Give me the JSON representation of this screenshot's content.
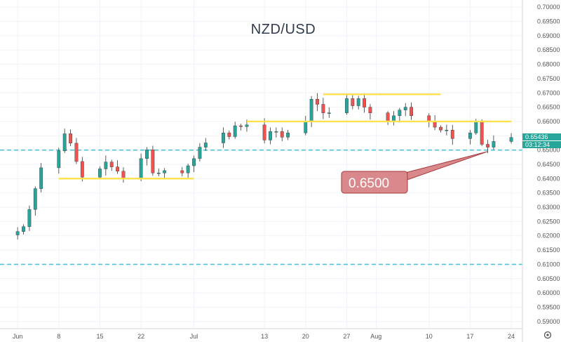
{
  "chart_data": {
    "type": "candlestick",
    "title": "NZD/USD",
    "xlabel": "",
    "ylabel": "",
    "ylim": [
      0.5875,
      0.7025
    ],
    "y_ticks": [
      "0.70000",
      "0.69500",
      "0.69000",
      "0.68500",
      "0.68000",
      "0.67500",
      "0.67000",
      "0.66500",
      "0.66000",
      "0.65500",
      "0.65000",
      "0.64500",
      "0.64000",
      "0.63500",
      "0.63000",
      "0.62500",
      "0.62000",
      "0.61500",
      "0.61000",
      "0.60500",
      "0.60000",
      "0.59500",
      "0.59000"
    ],
    "x_ticks": [
      "Jun",
      "8",
      "15",
      "22",
      "Jul",
      "13",
      "20",
      "27",
      "Aug",
      "10",
      "17",
      "24"
    ],
    "grid": true,
    "current_price": "0.65436",
    "countdown": "03:12:34",
    "current_price_color": "#26a69a",
    "countdown_color": "#26a69a",
    "candle_up_color": "#26a69a",
    "candle_down_color": "#ef5350",
    "horizontal_levels": [
      {
        "value": 0.65,
        "style": "dashed",
        "color": "#4fc3d8"
      },
      {
        "value": 0.61,
        "style": "dashed",
        "color": "#4fc3d8"
      }
    ],
    "annotation_lines": [
      {
        "value": 0.64,
        "from": "Jun 8",
        "to": "Jul 1",
        "color": "#ffe14d"
      },
      {
        "value": 0.66,
        "from": "Jul 10",
        "to": "Aug 24",
        "color": "#ffe14d"
      },
      {
        "value": 0.6695,
        "from": "Jul 23",
        "to": "Aug 12",
        "color": "#ffe14d"
      }
    ],
    "callout": {
      "text": "0.6500",
      "color": "#d9898b"
    },
    "series": [
      {
        "date": "Jun 1",
        "close": 0.6215
      },
      {
        "date": "Jun 2",
        "close": 0.6232
      },
      {
        "date": "Jun 3",
        "close": 0.6292
      },
      {
        "date": "Jun 4",
        "close": 0.6365
      },
      {
        "date": "Jun 5",
        "close": 0.6438
      },
      {
        "date": "Jun 8",
        "close": 0.6497
      },
      {
        "date": "Jun 9",
        "close": 0.6557
      },
      {
        "date": "Jun 10",
        "close": 0.6524
      },
      {
        "date": "Jun 11",
        "close": 0.646
      },
      {
        "date": "Jun 12",
        "close": 0.6405
      },
      {
        "date": "Jun 15",
        "close": 0.6434
      },
      {
        "date": "Jun 16",
        "close": 0.6458
      },
      {
        "date": "Jun 17",
        "close": 0.6441
      },
      {
        "date": "Jun 18",
        "close": 0.6426
      },
      {
        "date": "Jun 19",
        "close": 0.6402
      },
      {
        "date": "Jun 22",
        "close": 0.647
      },
      {
        "date": "Jun 23",
        "close": 0.6501
      },
      {
        "date": "Jun 24",
        "close": 0.642
      },
      {
        "date": "Jun 25",
        "close": 0.642
      },
      {
        "date": "Jun 26",
        "close": 0.6428
      },
      {
        "date": "Jun 29",
        "close": 0.642
      },
      {
        "date": "Jun 30",
        "close": 0.6445
      },
      {
        "date": "Jul 1",
        "close": 0.647
      },
      {
        "date": "Jul 2",
        "close": 0.651
      },
      {
        "date": "Jul 3",
        "close": 0.6525
      },
      {
        "date": "Jul 6",
        "close": 0.656
      },
      {
        "date": "Jul 7",
        "close": 0.6547
      },
      {
        "date": "Jul 8",
        "close": 0.6585
      },
      {
        "date": "Jul 9",
        "close": 0.6582
      },
      {
        "date": "Jul 10",
        "close": 0.6588
      },
      {
        "date": "Jul 13",
        "close": 0.6535
      },
      {
        "date": "Jul 14",
        "close": 0.6565
      },
      {
        "date": "Jul 15",
        "close": 0.6565
      },
      {
        "date": "Jul 16",
        "close": 0.6545
      },
      {
        "date": "Jul 17",
        "close": 0.656
      },
      {
        "date": "Jul 20",
        "close": 0.66
      },
      {
        "date": "Jul 21",
        "close": 0.6678
      },
      {
        "date": "Jul 22",
        "close": 0.666
      },
      {
        "date": "Jul 23",
        "close": 0.663
      },
      {
        "date": "Jul 24",
        "close": 0.663
      },
      {
        "date": "Jul 27",
        "close": 0.668
      },
      {
        "date": "Jul 28",
        "close": 0.6655
      },
      {
        "date": "Jul 29",
        "close": 0.668
      },
      {
        "date": "Jul 30",
        "close": 0.665
      },
      {
        "date": "Jul 31",
        "close": 0.663
      },
      {
        "date": "Aug 3",
        "close": 0.66
      },
      {
        "date": "Aug 4",
        "close": 0.662
      },
      {
        "date": "Aug 5",
        "close": 0.664
      },
      {
        "date": "Aug 6",
        "close": 0.665
      },
      {
        "date": "Aug 7",
        "close": 0.662
      },
      {
        "date": "Aug 10",
        "close": 0.66
      },
      {
        "date": "Aug 11",
        "close": 0.658
      },
      {
        "date": "Aug 12",
        "close": 0.657
      },
      {
        "date": "Aug 13",
        "close": 0.657
      },
      {
        "date": "Aug 14",
        "close": 0.654
      },
      {
        "date": "Aug 17",
        "close": 0.656
      },
      {
        "date": "Aug 18",
        "close": 0.66
      },
      {
        "date": "Aug 19",
        "close": 0.652
      },
      {
        "date": "Aug 20",
        "close": 0.651
      },
      {
        "date": "Aug 21",
        "close": 0.653
      },
      {
        "date": "Aug 24",
        "close": 0.6544
      }
    ]
  }
}
